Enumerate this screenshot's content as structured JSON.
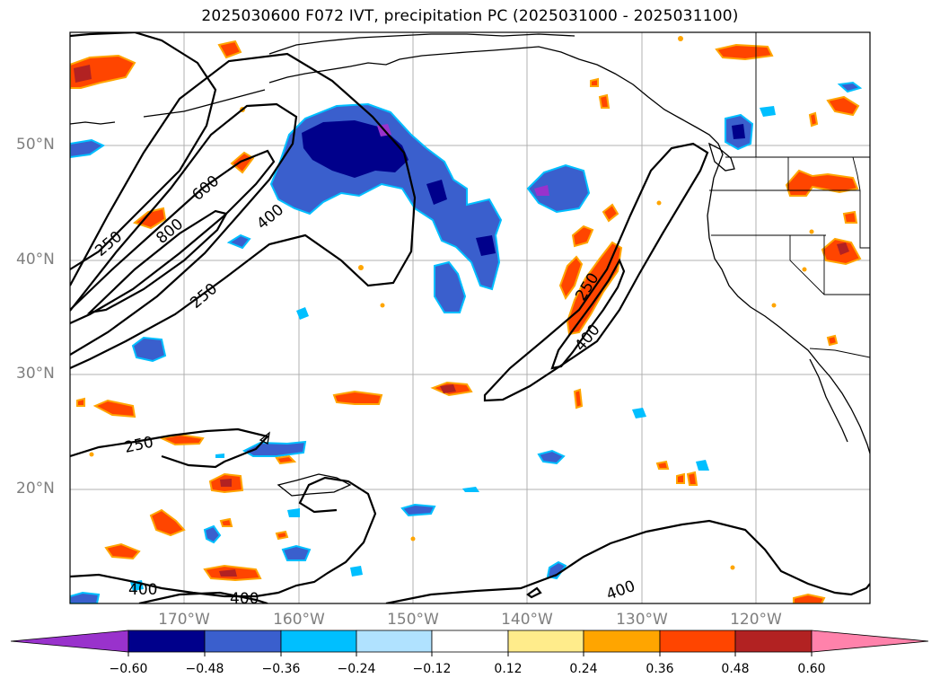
{
  "title": "2025030600 F072 IVT, precipitation PC (2025031000 - 2025031100)",
  "map": {
    "lat_labels": [
      "50°N",
      "40°N",
      "30°N",
      "20°N"
    ],
    "lon_labels": [
      "170°W",
      "160°W",
      "150°W",
      "140°W",
      "130°W",
      "120°W"
    ],
    "contour_labels": [
      "250",
      "600",
      "800",
      "400",
      "250",
      "250",
      "400",
      "250",
      "400",
      "400",
      "400"
    ]
  },
  "colorbar": {
    "ticks": [
      "−0.60",
      "−0.48",
      "−0.36",
      "−0.24",
      "−0.12",
      "0.12",
      "0.24",
      "0.36",
      "0.48",
      "0.60"
    ],
    "colors": [
      "#9932cc",
      "#00008b",
      "#3a5fcd",
      "#00bfff",
      "#b0e2ff",
      "#ffffff",
      "#ffec8b",
      "#ffa500",
      "#ff4500",
      "#b22222",
      "#ff82ab"
    ]
  }
}
